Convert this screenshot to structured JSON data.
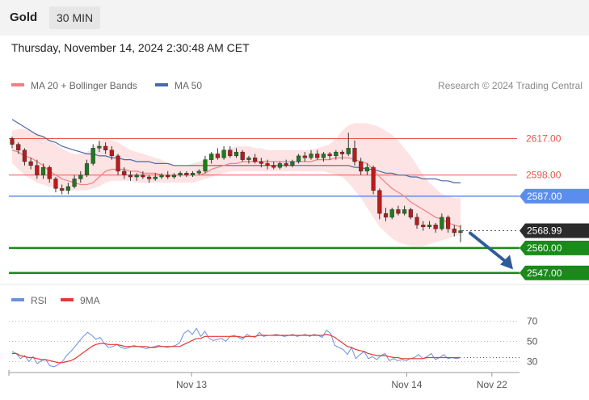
{
  "instrument": "Gold",
  "timeframe": "30 MIN",
  "timestamp": "Thursday, November 14, 2024 2:30:48 AM CET",
  "credit": "Research © 2024 Trading Central",
  "colors": {
    "ma20": "#f08080",
    "bollinger_fill": "#fde0e0",
    "ma50": "#4a6aa8",
    "resistance": "#ef5350",
    "pivot": "#5b8def",
    "support": "#1a8a1a",
    "price_badge": "#2b2b2b",
    "arrow": "#2f5d9b",
    "bull": "#1e7a1e",
    "bear": "#b71c1c",
    "rsi": "#6b8fe0",
    "rsi_ma": "#e53935"
  },
  "chart_data": [
    {
      "type": "candlestick",
      "title": "",
      "legend": [
        {
          "name": "MA 20 + Bollinger Bands",
          "color": "#f08080"
        },
        {
          "name": "MA 50",
          "color": "#4a6aa8"
        }
      ],
      "legend_position": "top-left",
      "ylim": [
        2541,
        2637
      ],
      "levels": [
        {
          "value": 2617.0,
          "label": "2617.00",
          "kind": "resistance",
          "style": "solid"
        },
        {
          "value": 2598.0,
          "label": "2598.00",
          "kind": "resistance",
          "style": "solid"
        },
        {
          "value": 2587.0,
          "label": "2587.00",
          "kind": "pivot",
          "style": "solid"
        },
        {
          "value": 2568.99,
          "label": "2568.99",
          "kind": "last-price",
          "style": "dotted"
        },
        {
          "value": 2560.0,
          "label": "2560.00",
          "kind": "support",
          "style": "solid"
        },
        {
          "value": 2547.0,
          "label": "2547.00",
          "kind": "support",
          "style": "solid"
        }
      ],
      "forecast_arrow": {
        "from": 2569,
        "to": 2548,
        "direction": "down"
      },
      "candles": [
        [
          2617,
          2618,
          2612,
          2614
        ],
        [
          2614,
          2615,
          2609,
          2611
        ],
        [
          2611,
          2612,
          2603,
          2605
        ],
        [
          2605,
          2607,
          2601,
          2603
        ],
        [
          2603,
          2606,
          2596,
          2598
        ],
        [
          2598,
          2604,
          2596,
          2602
        ],
        [
          2602,
          2603,
          2594,
          2596
        ],
        [
          2596,
          2597,
          2589,
          2591
        ],
        [
          2591,
          2593,
          2588,
          2590
        ],
        [
          2590,
          2594,
          2588,
          2592
        ],
        [
          2592,
          2598,
          2591,
          2596
        ],
        [
          2596,
          2600,
          2594,
          2598
        ],
        [
          2598,
          2606,
          2597,
          2604
        ],
        [
          2604,
          2614,
          2603,
          2612
        ],
        [
          2612,
          2616,
          2610,
          2613
        ],
        [
          2613,
          2615,
          2609,
          2611
        ],
        [
          2611,
          2613,
          2606,
          2608
        ],
        [
          2608,
          2609,
          2598,
          2600
        ],
        [
          2600,
          2602,
          2596,
          2598
        ],
        [
          2598,
          2600,
          2595,
          2597
        ],
        [
          2597,
          2599,
          2595,
          2598
        ],
        [
          2598,
          2600,
          2596,
          2597
        ],
        [
          2597,
          2598,
          2594,
          2596
        ],
        [
          2596,
          2599,
          2595,
          2597
        ],
        [
          2597,
          2599,
          2596,
          2598
        ],
        [
          2598,
          2600,
          2596,
          2597
        ],
        [
          2597,
          2599,
          2596,
          2598
        ],
        [
          2598,
          2600,
          2597,
          2599
        ],
        [
          2599,
          2600,
          2597,
          2598
        ],
        [
          2598,
          2600,
          2597,
          2599
        ],
        [
          2599,
          2601,
          2598,
          2600
        ],
        [
          2600,
          2608,
          2599,
          2606
        ],
        [
          2606,
          2610,
          2604,
          2609
        ],
        [
          2609,
          2612,
          2606,
          2607
        ],
        [
          2607,
          2613,
          2606,
          2611
        ],
        [
          2611,
          2613,
          2607,
          2608
        ],
        [
          2608,
          2612,
          2607,
          2610
        ],
        [
          2610,
          2611,
          2605,
          2606
        ],
        [
          2606,
          2608,
          2604,
          2607
        ],
        [
          2607,
          2609,
          2604,
          2605
        ],
        [
          2605,
          2607,
          2602,
          2604
        ],
        [
          2604,
          2606,
          2601,
          2603
        ],
        [
          2603,
          2605,
          2601,
          2602
        ],
        [
          2602,
          2605,
          2601,
          2604
        ],
        [
          2604,
          2606,
          2602,
          2603
        ],
        [
          2603,
          2606,
          2602,
          2605
        ],
        [
          2605,
          2609,
          2604,
          2608
        ],
        [
          2608,
          2610,
          2605,
          2607
        ],
        [
          2607,
          2611,
          2606,
          2609
        ],
        [
          2609,
          2611,
          2606,
          2607
        ],
        [
          2607,
          2610,
          2605,
          2609
        ],
        [
          2609,
          2610,
          2606,
          2608
        ],
        [
          2608,
          2611,
          2606,
          2610
        ],
        [
          2610,
          2611,
          2606,
          2609
        ],
        [
          2609,
          2620,
          2608,
          2612
        ],
        [
          2612,
          2616,
          2603,
          2605
        ],
        [
          2605,
          2607,
          2598,
          2600
        ],
        [
          2600,
          2604,
          2598,
          2602
        ],
        [
          2602,
          2603,
          2588,
          2590
        ],
        [
          2590,
          2591,
          2575,
          2578
        ],
        [
          2578,
          2581,
          2574,
          2576
        ],
        [
          2576,
          2581,
          2575,
          2580
        ],
        [
          2580,
          2582,
          2577,
          2578
        ],
        [
          2578,
          2582,
          2577,
          2580
        ],
        [
          2580,
          2581,
          2575,
          2576
        ],
        [
          2576,
          2578,
          2570,
          2572
        ],
        [
          2572,
          2574,
          2569,
          2571
        ],
        [
          2571,
          2574,
          2570,
          2572
        ],
        [
          2572,
          2573,
          2568,
          2570
        ],
        [
          2570,
          2578,
          2569,
          2576
        ],
        [
          2576,
          2577,
          2568,
          2570
        ],
        [
          2570,
          2572,
          2566,
          2568
        ],
        [
          2568,
          2572,
          2563,
          2569
        ]
      ],
      "ma20": [
        2611,
        2610,
        2608,
        2607,
        2605,
        2603,
        2600,
        2598,
        2596,
        2595,
        2594,
        2593,
        2593,
        2594,
        2597,
        2600,
        2601,
        2601,
        2601,
        2600,
        2600,
        2599,
        2599,
        2599,
        2598,
        2598,
        2598,
        2598,
        2598,
        2598,
        2598,
        2599,
        2601,
        2602,
        2603,
        2604,
        2604,
        2605,
        2605,
        2605,
        2605,
        2605,
        2605,
        2605,
        2605,
        2605,
        2605,
        2605,
        2605,
        2606,
        2606,
        2606,
        2607,
        2607,
        2607,
        2606,
        2605,
        2604,
        2601,
        2597,
        2594,
        2591,
        2589,
        2587,
        2584,
        2582,
        2580,
        2578,
        2576,
        2575,
        2573,
        2572,
        2571
      ],
      "bb_upper": [
        2621,
        2622,
        2622,
        2621,
        2620,
        2618,
        2616,
        2614,
        2612,
        2610,
        2609,
        2609,
        2610,
        2612,
        2615,
        2617,
        2616,
        2615,
        2613,
        2611,
        2610,
        2609,
        2608,
        2607,
        2606,
        2604,
        2603,
        2603,
        2603,
        2604,
        2605,
        2606,
        2608,
        2610,
        2611,
        2612,
        2613,
        2613,
        2613,
        2612,
        2612,
        2611,
        2611,
        2611,
        2611,
        2611,
        2611,
        2611,
        2611,
        2612,
        2613,
        2614,
        2617,
        2621,
        2624,
        2625,
        2625,
        2625,
        2624,
        2623,
        2621,
        2619,
        2616,
        2612,
        2608,
        2603,
        2598,
        2594,
        2591,
        2588,
        2587,
        2586,
        2586
      ],
      "bb_lower": [
        2604,
        2601,
        2598,
        2596,
        2594,
        2593,
        2592,
        2591,
        2590,
        2590,
        2590,
        2590,
        2590,
        2591,
        2592,
        2594,
        2595,
        2595,
        2595,
        2595,
        2594,
        2594,
        2594,
        2594,
        2594,
        2594,
        2594,
        2594,
        2594,
        2594,
        2595,
        2596,
        2597,
        2598,
        2599,
        2600,
        2600,
        2600,
        2600,
        2600,
        2600,
        2600,
        2600,
        2600,
        2600,
        2600,
        2600,
        2600,
        2600,
        2600,
        2600,
        2599,
        2598,
        2597,
        2594,
        2590,
        2586,
        2581,
        2576,
        2571,
        2568,
        2565,
        2563,
        2562,
        2561,
        2561,
        2561,
        2562,
        2563,
        2564,
        2565,
        2566,
        2567
      ],
      "ma50": [
        2627,
        2625,
        2623,
        2621,
        2619,
        2618,
        2616,
        2615,
        2613,
        2612,
        2611,
        2610,
        2609,
        2609,
        2608,
        2608,
        2607,
        2607,
        2606,
        2606,
        2605,
        2605,
        2605,
        2604,
        2604,
        2604,
        2603,
        2603,
        2603,
        2603,
        2603,
        2603,
        2603,
        2603,
        2603,
        2603,
        2603,
        2603,
        2603,
        2603,
        2603,
        2603,
        2603,
        2603,
        2603,
        2603,
        2603,
        2603,
        2603,
        2603,
        2603,
        2603,
        2603,
        2603,
        2603,
        2602,
        2602,
        2601,
        2601,
        2600,
        2599,
        2599,
        2598,
        2598,
        2597,
        2597,
        2596,
        2596,
        2596,
        2595,
        2595,
        2594,
        2594
      ]
    },
    {
      "type": "line",
      "title": "",
      "legend": [
        {
          "name": "RSI",
          "color": "#6b8fe0"
        },
        {
          "name": "9MA",
          "color": "#e53935"
        }
      ],
      "legend_position": "top-left",
      "ylim": [
        20,
        80
      ],
      "yticks": [
        "70",
        "50",
        "30"
      ],
      "yticks_values": [
        70,
        50,
        30
      ],
      "last_value": 34,
      "rsi": [
        40,
        38,
        33,
        36,
        30,
        35,
        28,
        31,
        32,
        26,
        25,
        27,
        30,
        36,
        40,
        45,
        50,
        55,
        59,
        56,
        52,
        54,
        48,
        44,
        45,
        47,
        44,
        43,
        44,
        46,
        45,
        44,
        43,
        44,
        45,
        46,
        45,
        44,
        45,
        46,
        49,
        58,
        61,
        57,
        63,
        55,
        60,
        53,
        51,
        52,
        53,
        50,
        55,
        56,
        54,
        52,
        57,
        55,
        54,
        59,
        55,
        56,
        56,
        57,
        56,
        55,
        56,
        57,
        55,
        56,
        57,
        55,
        57,
        56,
        54,
        61,
        58,
        46,
        44,
        42,
        37,
        44,
        33,
        37,
        40,
        33,
        35,
        32,
        36,
        38,
        31,
        33,
        31,
        32,
        31,
        33,
        34,
        37,
        33,
        35,
        38,
        32,
        34,
        37,
        33,
        34,
        33,
        34
      ],
      "rsi_ma": [
        38,
        38,
        36,
        35,
        34,
        34,
        33,
        32,
        32,
        31,
        30,
        29,
        29,
        30,
        31,
        33,
        36,
        39,
        42,
        45,
        47,
        48,
        48,
        47,
        47,
        47,
        46,
        45,
        45,
        45,
        45,
        45,
        45,
        44,
        44,
        45,
        45,
        45,
        45,
        45,
        45,
        47,
        49,
        51,
        53,
        53,
        55,
        55,
        55,
        55,
        55,
        55,
        55,
        55,
        55,
        54,
        55,
        55,
        55,
        56,
        56,
        56,
        56,
        56,
        56,
        56,
        56,
        56,
        56,
        56,
        56,
        56,
        56,
        56,
        56,
        57,
        56,
        54,
        51,
        48,
        45,
        44,
        42,
        41,
        40,
        38,
        37,
        36,
        36,
        36,
        35,
        34,
        34,
        33,
        33,
        33,
        33,
        33,
        33,
        34,
        34,
        34,
        34,
        34,
        34,
        34,
        34,
        34
      ]
    }
  ],
  "x_axis": {
    "ticks": [
      "Nov 13",
      "Nov 14",
      "Nov 22"
    ],
    "tick_positions": [
      0.4,
      0.88,
      1.07
    ]
  }
}
